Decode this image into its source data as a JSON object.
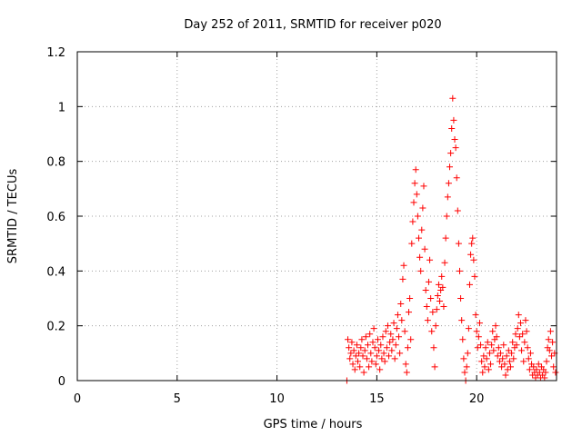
{
  "chart_data": {
    "type": "scatter",
    "title": "Day 252 of 2011, SRMTID for receiver p020",
    "xlabel": "GPS time / hours",
    "ylabel": "SRMTID / TECUs",
    "xlim": [
      0,
      24
    ],
    "ylim": [
      0,
      1.2
    ],
    "xticks": [
      0,
      5,
      10,
      15,
      20
    ],
    "yticks": [
      0,
      0.2,
      0.4,
      0.6,
      0.8,
      1,
      1.2
    ],
    "ytick_labels": [
      "0",
      "0.2",
      "0.4",
      "0.6",
      "0.8",
      "1",
      "1.2"
    ],
    "grid": true,
    "marker": "+",
    "series": [
      {
        "name": "SRMTID",
        "color": "#ff0000",
        "points": [
          [
            13.5,
            0.0
          ],
          [
            13.55,
            0.15
          ],
          [
            13.6,
            0.12
          ],
          [
            13.65,
            0.08
          ],
          [
            13.7,
            0.1
          ],
          [
            13.75,
            0.14
          ],
          [
            13.8,
            0.06
          ],
          [
            13.85,
            0.11
          ],
          [
            13.9,
            0.04
          ],
          [
            13.95,
            0.09
          ],
          [
            14.0,
            0.13
          ],
          [
            14.05,
            0.07
          ],
          [
            14.1,
            0.1
          ],
          [
            14.15,
            0.05
          ],
          [
            14.2,
            0.12
          ],
          [
            14.25,
            0.15
          ],
          [
            14.3,
            0.09
          ],
          [
            14.35,
            0.03
          ],
          [
            14.4,
            0.11
          ],
          [
            14.45,
            0.16
          ],
          [
            14.5,
            0.08
          ],
          [
            14.55,
            0.13
          ],
          [
            14.6,
            0.05
          ],
          [
            14.65,
            0.17
          ],
          [
            14.7,
            0.1
          ],
          [
            14.75,
            0.07
          ],
          [
            14.8,
            0.14
          ],
          [
            14.85,
            0.19
          ],
          [
            14.9,
            0.12
          ],
          [
            14.95,
            0.06
          ],
          [
            15.0,
            0.09
          ],
          [
            15.05,
            0.15
          ],
          [
            15.1,
            0.11
          ],
          [
            15.15,
            0.04
          ],
          [
            15.2,
            0.13
          ],
          [
            15.25,
            0.08
          ],
          [
            15.3,
            0.16
          ],
          [
            15.35,
            0.1
          ],
          [
            15.4,
            0.07
          ],
          [
            15.45,
            0.18
          ],
          [
            15.5,
            0.12
          ],
          [
            15.55,
            0.2
          ],
          [
            15.6,
            0.09
          ],
          [
            15.65,
            0.14
          ],
          [
            15.7,
            0.17
          ],
          [
            15.75,
            0.11
          ],
          [
            15.8,
            0.15
          ],
          [
            15.85,
            0.21
          ],
          [
            15.9,
            0.08
          ],
          [
            15.95,
            0.13
          ],
          [
            16.0,
            0.19
          ],
          [
            16.05,
            0.24
          ],
          [
            16.1,
            0.16
          ],
          [
            16.15,
            0.1
          ],
          [
            16.2,
            0.28
          ],
          [
            16.25,
            0.22
          ],
          [
            16.3,
            0.37
          ],
          [
            16.35,
            0.42
          ],
          [
            16.4,
            0.18
          ],
          [
            16.45,
            0.06
          ],
          [
            16.5,
            0.03
          ],
          [
            16.55,
            0.12
          ],
          [
            16.6,
            0.25
          ],
          [
            16.65,
            0.3
          ],
          [
            16.7,
            0.15
          ],
          [
            16.75,
            0.5
          ],
          [
            16.8,
            0.58
          ],
          [
            16.85,
            0.65
          ],
          [
            16.9,
            0.72
          ],
          [
            16.95,
            0.77
          ],
          [
            17.0,
            0.68
          ],
          [
            17.05,
            0.6
          ],
          [
            17.1,
            0.52
          ],
          [
            17.15,
            0.45
          ],
          [
            17.2,
            0.4
          ],
          [
            17.25,
            0.55
          ],
          [
            17.3,
            0.63
          ],
          [
            17.35,
            0.71
          ],
          [
            17.4,
            0.48
          ],
          [
            17.45,
            0.33
          ],
          [
            17.5,
            0.27
          ],
          [
            17.55,
            0.22
          ],
          [
            17.6,
            0.36
          ],
          [
            17.65,
            0.44
          ],
          [
            17.7,
            0.3
          ],
          [
            17.75,
            0.18
          ],
          [
            17.8,
            0.25
          ],
          [
            17.85,
            0.12
          ],
          [
            17.9,
            0.05
          ],
          [
            17.95,
            0.2
          ],
          [
            18.0,
            0.26
          ],
          [
            18.05,
            0.31
          ],
          [
            18.1,
            0.35
          ],
          [
            18.15,
            0.29
          ],
          [
            18.2,
            0.33
          ],
          [
            18.25,
            0.38
          ],
          [
            18.3,
            0.34
          ],
          [
            18.35,
            0.27
          ],
          [
            18.4,
            0.43
          ],
          [
            18.45,
            0.52
          ],
          [
            18.5,
            0.6
          ],
          [
            18.55,
            0.67
          ],
          [
            18.6,
            0.72
          ],
          [
            18.65,
            0.78
          ],
          [
            18.7,
            0.83
          ],
          [
            18.75,
            0.92
          ],
          [
            18.8,
            1.03
          ],
          [
            18.85,
            0.95
          ],
          [
            18.9,
            0.88
          ],
          [
            18.95,
            0.85
          ],
          [
            19.0,
            0.74
          ],
          [
            19.05,
            0.62
          ],
          [
            19.1,
            0.5
          ],
          [
            19.15,
            0.4
          ],
          [
            19.2,
            0.3
          ],
          [
            19.25,
            0.22
          ],
          [
            19.3,
            0.15
          ],
          [
            19.35,
            0.08
          ],
          [
            19.4,
            0.03
          ],
          [
            19.45,
            0.0
          ],
          [
            19.5,
            0.05
          ],
          [
            19.55,
            0.1
          ],
          [
            19.6,
            0.19
          ],
          [
            19.65,
            0.35
          ],
          [
            19.7,
            0.46
          ],
          [
            19.75,
            0.5
          ],
          [
            19.8,
            0.52
          ],
          [
            19.85,
            0.44
          ],
          [
            19.9,
            0.38
          ],
          [
            19.95,
            0.24
          ],
          [
            20.0,
            0.18
          ],
          [
            20.05,
            0.12
          ],
          [
            20.1,
            0.16
          ],
          [
            20.15,
            0.21
          ],
          [
            20.2,
            0.13
          ],
          [
            20.25,
            0.07
          ],
          [
            20.3,
            0.03
          ],
          [
            20.35,
            0.09
          ],
          [
            20.4,
            0.05
          ],
          [
            20.45,
            0.12
          ],
          [
            20.5,
            0.08
          ],
          [
            20.55,
            0.14
          ],
          [
            20.6,
            0.04
          ],
          [
            20.65,
            0.1
          ],
          [
            20.7,
            0.06
          ],
          [
            20.75,
            0.13
          ],
          [
            20.8,
            0.18
          ],
          [
            20.85,
            0.11
          ],
          [
            20.9,
            0.15
          ],
          [
            20.95,
            0.2
          ],
          [
            21.0,
            0.16
          ],
          [
            21.05,
            0.09
          ],
          [
            21.1,
            0.12
          ],
          [
            21.15,
            0.07
          ],
          [
            21.2,
            0.1
          ],
          [
            21.25,
            0.05
          ],
          [
            21.3,
            0.08
          ],
          [
            21.35,
            0.13
          ],
          [
            21.4,
            0.06
          ],
          [
            21.45,
            0.02
          ],
          [
            21.5,
            0.09
          ],
          [
            21.55,
            0.04
          ],
          [
            21.6,
            0.11
          ],
          [
            21.65,
            0.07
          ],
          [
            21.7,
            0.05
          ],
          [
            21.75,
            0.1
          ],
          [
            21.8,
            0.14
          ],
          [
            21.85,
            0.08
          ],
          [
            21.9,
            0.12
          ],
          [
            21.95,
            0.17
          ],
          [
            22.0,
            0.13
          ],
          [
            22.05,
            0.19
          ],
          [
            22.1,
            0.24
          ],
          [
            22.15,
            0.16
          ],
          [
            22.2,
            0.21
          ],
          [
            22.25,
            0.11
          ],
          [
            22.3,
            0.17
          ],
          [
            22.35,
            0.07
          ],
          [
            22.4,
            0.14
          ],
          [
            22.45,
            0.22
          ],
          [
            22.5,
            0.18
          ],
          [
            22.55,
            0.12
          ],
          [
            22.6,
            0.08
          ],
          [
            22.65,
            0.04
          ],
          [
            22.7,
            0.1
          ],
          [
            22.75,
            0.06
          ],
          [
            22.8,
            0.02
          ],
          [
            22.85,
            0.05
          ],
          [
            22.9,
            0.03
          ],
          [
            22.95,
            0.01
          ],
          [
            23.0,
            0.04
          ],
          [
            23.05,
            0.02
          ],
          [
            23.1,
            0.06
          ],
          [
            23.15,
            0.03
          ],
          [
            23.2,
            0.01
          ],
          [
            23.25,
            0.05
          ],
          [
            23.3,
            0.02
          ],
          [
            23.35,
            0.04
          ],
          [
            23.4,
            0.01
          ],
          [
            23.45,
            0.03
          ],
          [
            23.5,
            0.07
          ],
          [
            23.55,
            0.12
          ],
          [
            23.6,
            0.15
          ],
          [
            23.65,
            0.11
          ],
          [
            23.7,
            0.18
          ],
          [
            23.75,
            0.09
          ],
          [
            23.8,
            0.14
          ],
          [
            23.85,
            0.05
          ],
          [
            23.9,
            0.1
          ],
          [
            23.95,
            0.03
          ]
        ]
      }
    ]
  }
}
